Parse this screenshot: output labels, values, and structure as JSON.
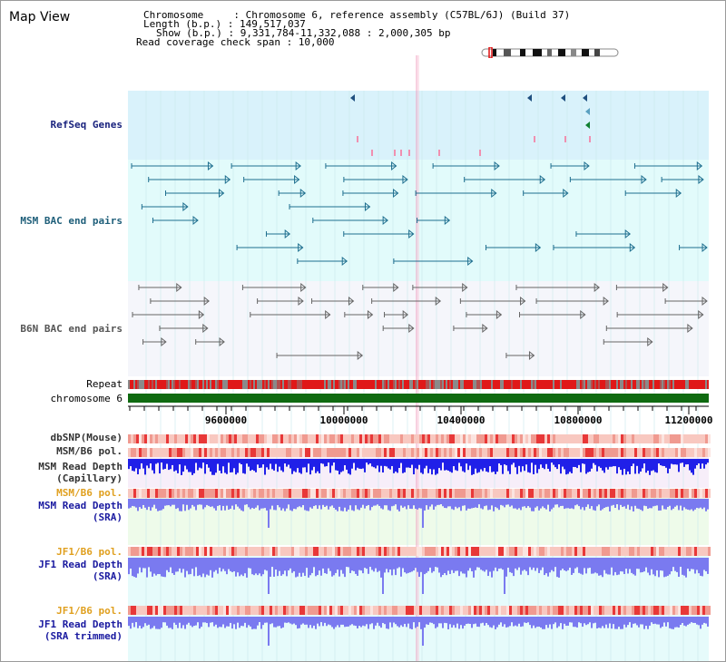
{
  "header": {
    "title": "Map View",
    "info_lines": [
      "Chromosome     : Chromosome 6, reference assembly (C57BL/6J) (Build 37)",
      "Length (b.p.) : 149,517,037",
      "Show (b.p.) : 9,331,784-11,332,088 : 2,000,305 bp",
      "Read coverage check span : 10,000"
    ]
  },
  "tracks": {
    "refseq": "RefSeq Genes",
    "msm_bac": "MSM BAC end pairs",
    "b6n_bac": "B6N BAC end pairs",
    "repeat": "Repeat",
    "chromosome": "chromosome 6",
    "dbsnp": "dbSNP(Mouse)",
    "msm_b6_pol_1": "MSM/B6 pol.",
    "msm_depth_cap_1": "MSM Read Depth",
    "msm_depth_cap_2": "(Capillary)",
    "msm_b6_pol_2": "MSM/B6 pol.",
    "msm_depth_sra_1": "MSM Read Depth",
    "msm_depth_sra_2": "(SRA)",
    "jf1_b6_pol_1": "JF1/B6 pol.",
    "jf1_depth_sra_1": "JF1 Read Depth",
    "jf1_depth_sra_2": "(SRA)",
    "jf1_b6_pol_2": "JF1/B6 pol.",
    "jf1_depth_trim_1": "JF1 Read Depth",
    "jf1_depth_trim_2": "(SRA trimmed)"
  },
  "axis": {
    "ticks": [
      "9600000",
      "10000000",
      "10400000",
      "10800000",
      "11200000"
    ]
  },
  "colors": {
    "refseq_bg": "#d9f2fb",
    "msm_bg": "#e2fbfb",
    "b6n_bg": "#f5f6fb",
    "depth_bg": "#e6fbfb",
    "chromosome_bar": "#0f6a10",
    "repeat_red": "#e01818",
    "repeat_grey": "#8a8a8a",
    "depth_capillary": "#2020e8",
    "depth_sra": "#7a7af0",
    "msm_feature": "#1f6f8f",
    "b6n_feature": "#666666",
    "pol_light": "#f8c8c0",
    "pol_dark": "#e83838"
  }
}
